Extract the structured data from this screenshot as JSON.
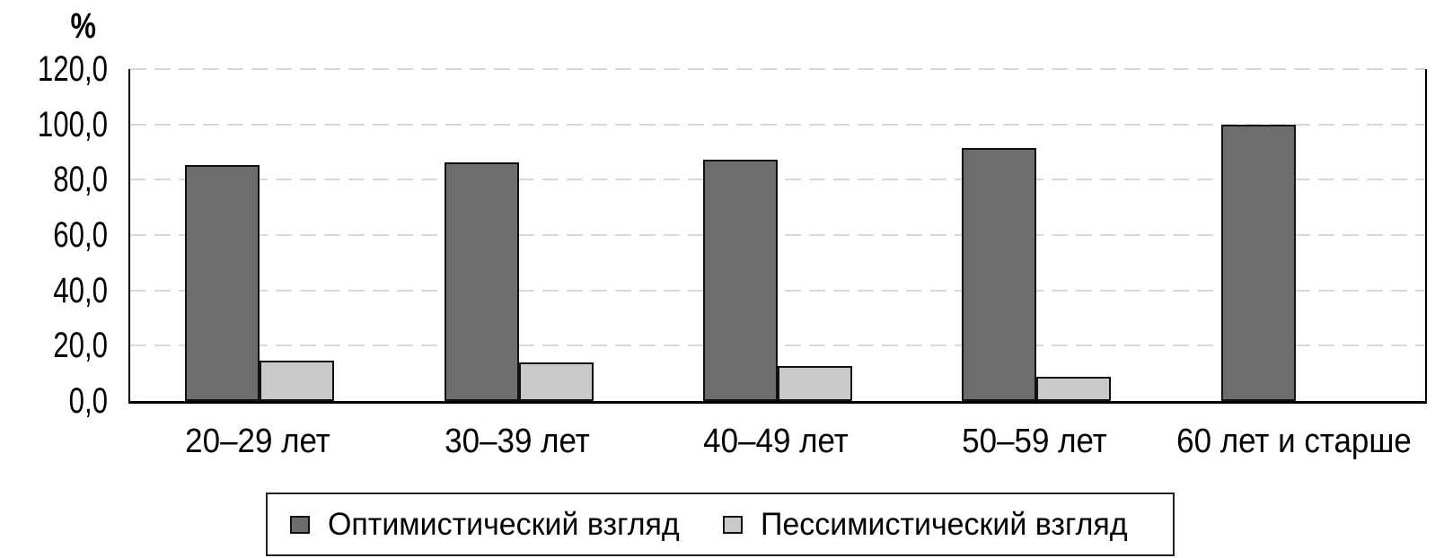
{
  "chart_data": {
    "type": "bar",
    "title": "",
    "ylabel": "%",
    "xlabel": "",
    "categories": [
      "20–29 лет",
      "30–39 лет",
      "40–49 лет",
      "50–59 лет",
      "60 лет и старше"
    ],
    "series": [
      {
        "name": "Оптимистический взгляд",
        "color": "#6d6d6d",
        "values": [
          85.4,
          86.2,
          87.3,
          91.4,
          100.0
        ]
      },
      {
        "name": "Пессимистический взгляд",
        "color": "#c9c9c9",
        "values": [
          14.6,
          13.8,
          12.7,
          8.6,
          0.0
        ]
      }
    ],
    "ylim": [
      0,
      120
    ],
    "ytick_step": 20,
    "yticks": [
      "120,0",
      "100,0",
      "80,0",
      "60,0",
      "40,0",
      "20,0",
      "0,0"
    ],
    "grid": "horizontal-dashed",
    "legend_position": "bottom",
    "colors": {
      "bar_border": "#111111",
      "gridline": "#d8d8d8",
      "axis": "#000000"
    }
  }
}
